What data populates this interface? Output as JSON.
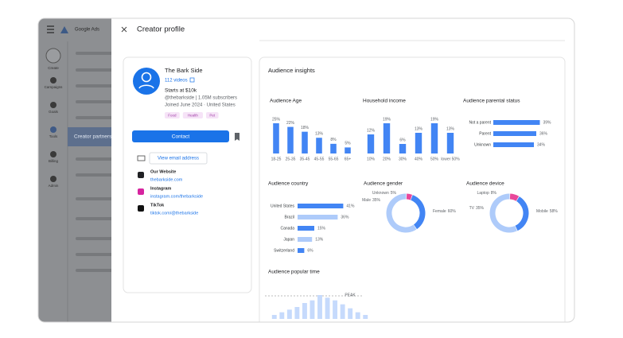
{
  "app": {
    "brand": "Google Ads",
    "nav": [
      "Create",
      "Campaigns",
      "Goals",
      "Tools",
      "Billing",
      "Admin"
    ],
    "active_item": "Creator partnerships"
  },
  "panel": {
    "title": "Creator profile"
  },
  "profile": {
    "name": "The Bark Side",
    "videos": "112 videos",
    "price": "Starts at $10k",
    "handle": "@thebarkside | 1.05M subscribers",
    "joined": "Joined June 2024 · United States",
    "tags": [
      "Food",
      "Health",
      "Pet"
    ],
    "contact": "Contact",
    "email": "View email address",
    "links": [
      {
        "label": "Our Website",
        "url": "thebarkside.com"
      },
      {
        "label": "Instagram",
        "url": "instagram.com/thebarkside"
      },
      {
        "label": "TikTok",
        "url": "tiktok.com/@thebarkside"
      }
    ]
  },
  "insights": {
    "title": "Audience insights"
  },
  "chart_data": [
    {
      "type": "bar",
      "title": "Audience Age",
      "categories": [
        "18-25",
        "25-35",
        "35-45",
        "45-55",
        "55-65",
        "65+"
      ],
      "values": [
        25,
        22,
        18,
        13,
        8,
        5
      ],
      "value_labels": [
        "25%",
        "22%",
        "18%",
        "13%",
        "8%",
        "5%"
      ],
      "color": "#4285f4"
    },
    {
      "type": "bar",
      "title": "Household income",
      "categories": [
        "10%",
        "20%",
        "30%",
        "40%",
        "50%",
        "lower 50%"
      ],
      "values": [
        12,
        19,
        6,
        13,
        19,
        13
      ],
      "value_labels": [
        "12%",
        "19%",
        "6%",
        "13%",
        "19%",
        "13%"
      ],
      "color": "#4285f4"
    },
    {
      "type": "hbar",
      "title": "Audience parental status",
      "categories": [
        "Not a parent",
        "Parent",
        "Unknown"
      ],
      "values": [
        39,
        36,
        34
      ],
      "value_labels": [
        "39%",
        "36%",
        "34%"
      ],
      "color": "#4285f4"
    },
    {
      "type": "hbar",
      "title": "Audience country",
      "categories": [
        "United States",
        "Brazil",
        "Canada",
        "Japan",
        "Switzerland"
      ],
      "values": [
        41,
        36,
        15,
        13,
        6
      ],
      "value_labels": [
        "41%",
        "36%",
        "15%",
        "13%",
        "6%"
      ],
      "colors": [
        "#4285f4",
        "#aecbfa",
        "#4285f4",
        "#aecbfa",
        "#4285f4"
      ]
    },
    {
      "type": "donut",
      "title": "Audience gender",
      "categories": [
        "Unknown",
        "Male",
        "Female"
      ],
      "values": [
        5,
        35,
        60
      ],
      "value_labels": [
        "5%",
        "35%",
        "60%"
      ],
      "colors": [
        "#e8489a",
        "#4285f4",
        "#aecbfa"
      ]
    },
    {
      "type": "donut",
      "title": "Audience device",
      "categories": [
        "Laptop",
        "TV",
        "Mobile"
      ],
      "values": [
        8,
        35,
        58
      ],
      "value_labels": [
        "8%",
        "35%",
        "58%"
      ],
      "colors": [
        "#e8489a",
        "#4285f4",
        "#aecbfa"
      ]
    },
    {
      "type": "bar",
      "title": "Audience popular time",
      "values": [
        3,
        5,
        7,
        9,
        12,
        14,
        18,
        16,
        14,
        11,
        8,
        5,
        3
      ],
      "annotation": "PEAK",
      "color": "#c6dafc"
    }
  ]
}
